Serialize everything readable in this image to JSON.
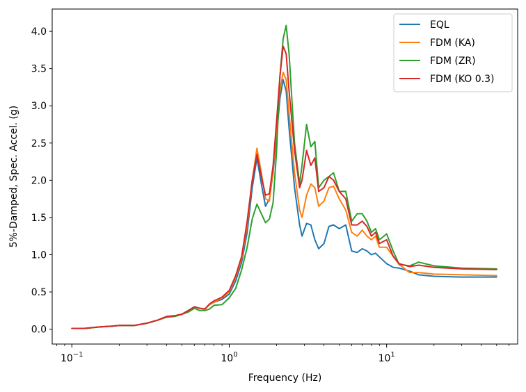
{
  "chart_data": {
    "type": "line",
    "xscale": "log",
    "xlabel": "Frequency (Hz)",
    "ylabel": "5%-Damped, Spec. Accel. (g)",
    "xlim": [
      0.075,
      68
    ],
    "ylim": [
      -0.2,
      4.3
    ],
    "yticks": [
      0.0,
      0.5,
      1.0,
      1.5,
      2.0,
      2.5,
      3.0,
      3.5,
      4.0
    ],
    "ytick_labels": [
      "0.0",
      "0.5",
      "1.0",
      "1.5",
      "2.0",
      "2.5",
      "3.0",
      "3.5",
      "4.0"
    ],
    "xticks": [
      0.1,
      1,
      10
    ],
    "xtick_labels": [
      {
        "base": "10",
        "exp": "−1"
      },
      {
        "base": "10",
        "exp": "0"
      },
      {
        "base": "10",
        "exp": "1"
      }
    ],
    "legend_position": "top-right",
    "grid": false,
    "series": [
      {
        "name": "EQL",
        "color": "#1f77b4",
        "points": [
          [
            0.1,
            0.01
          ],
          [
            0.12,
            0.01
          ],
          [
            0.15,
            0.03
          ],
          [
            0.18,
            0.04
          ],
          [
            0.2,
            0.05
          ],
          [
            0.25,
            0.05
          ],
          [
            0.3,
            0.08
          ],
          [
            0.35,
            0.12
          ],
          [
            0.4,
            0.17
          ],
          [
            0.45,
            0.18
          ],
          [
            0.5,
            0.2
          ],
          [
            0.55,
            0.25
          ],
          [
            0.6,
            0.3
          ],
          [
            0.65,
            0.28
          ],
          [
            0.7,
            0.27
          ],
          [
            0.75,
            0.33
          ],
          [
            0.8,
            0.36
          ],
          [
            0.9,
            0.4
          ],
          [
            1.0,
            0.47
          ],
          [
            1.1,
            0.65
          ],
          [
            1.2,
            0.9
          ],
          [
            1.3,
            1.3
          ],
          [
            1.4,
            1.9
          ],
          [
            1.5,
            2.3
          ],
          [
            1.6,
            1.95
          ],
          [
            1.7,
            1.65
          ],
          [
            1.8,
            1.75
          ],
          [
            1.9,
            2.1
          ],
          [
            2.0,
            2.6
          ],
          [
            2.1,
            3.1
          ],
          [
            2.2,
            3.35
          ],
          [
            2.3,
            3.2
          ],
          [
            2.4,
            2.7
          ],
          [
            2.6,
            1.9
          ],
          [
            2.8,
            1.4
          ],
          [
            2.9,
            1.25
          ],
          [
            3.1,
            1.42
          ],
          [
            3.3,
            1.4
          ],
          [
            3.5,
            1.2
          ],
          [
            3.7,
            1.08
          ],
          [
            4.0,
            1.15
          ],
          [
            4.3,
            1.38
          ],
          [
            4.6,
            1.4
          ],
          [
            5.0,
            1.35
          ],
          [
            5.5,
            1.4
          ],
          [
            6.0,
            1.05
          ],
          [
            6.5,
            1.03
          ],
          [
            7.0,
            1.08
          ],
          [
            7.5,
            1.05
          ],
          [
            8.0,
            1.0
          ],
          [
            8.5,
            1.02
          ],
          [
            9.0,
            0.97
          ],
          [
            10.0,
            0.88
          ],
          [
            11.0,
            0.83
          ],
          [
            12.0,
            0.82
          ],
          [
            14.0,
            0.78
          ],
          [
            16.0,
            0.73
          ],
          [
            20.0,
            0.71
          ],
          [
            30.0,
            0.7
          ],
          [
            50.0,
            0.7
          ]
        ]
      },
      {
        "name": "FDM (KA)",
        "color": "#ff7f0e",
        "points": [
          [
            0.1,
            0.01
          ],
          [
            0.12,
            0.01
          ],
          [
            0.15,
            0.03
          ],
          [
            0.18,
            0.04
          ],
          [
            0.2,
            0.05
          ],
          [
            0.25,
            0.05
          ],
          [
            0.3,
            0.08
          ],
          [
            0.35,
            0.12
          ],
          [
            0.4,
            0.17
          ],
          [
            0.45,
            0.18
          ],
          [
            0.5,
            0.2
          ],
          [
            0.55,
            0.25
          ],
          [
            0.6,
            0.3
          ],
          [
            0.65,
            0.28
          ],
          [
            0.7,
            0.27
          ],
          [
            0.75,
            0.33
          ],
          [
            0.8,
            0.36
          ],
          [
            0.9,
            0.42
          ],
          [
            1.0,
            0.5
          ],
          [
            1.1,
            0.7
          ],
          [
            1.2,
            0.95
          ],
          [
            1.3,
            1.4
          ],
          [
            1.4,
            2.0
          ],
          [
            1.5,
            2.43
          ],
          [
            1.6,
            2.1
          ],
          [
            1.7,
            1.75
          ],
          [
            1.8,
            1.72
          ],
          [
            1.9,
            2.15
          ],
          [
            2.0,
            2.7
          ],
          [
            2.1,
            3.2
          ],
          [
            2.2,
            3.45
          ],
          [
            2.3,
            3.35
          ],
          [
            2.4,
            2.9
          ],
          [
            2.6,
            2.1
          ],
          [
            2.8,
            1.6
          ],
          [
            2.9,
            1.5
          ],
          [
            3.1,
            1.8
          ],
          [
            3.3,
            1.95
          ],
          [
            3.5,
            1.9
          ],
          [
            3.7,
            1.65
          ],
          [
            4.0,
            1.72
          ],
          [
            4.3,
            1.9
          ],
          [
            4.6,
            1.92
          ],
          [
            5.0,
            1.75
          ],
          [
            5.5,
            1.6
          ],
          [
            6.0,
            1.3
          ],
          [
            6.5,
            1.25
          ],
          [
            7.0,
            1.33
          ],
          [
            7.5,
            1.25
          ],
          [
            8.0,
            1.2
          ],
          [
            8.5,
            1.25
          ],
          [
            9.0,
            1.1
          ],
          [
            10.0,
            1.1
          ],
          [
            11.0,
            0.98
          ],
          [
            12.0,
            0.87
          ],
          [
            14.0,
            0.76
          ],
          [
            16.0,
            0.76
          ],
          [
            20.0,
            0.74
          ],
          [
            30.0,
            0.73
          ],
          [
            50.0,
            0.72
          ]
        ]
      },
      {
        "name": "FDM (ZR)",
        "color": "#2ca02c",
        "points": [
          [
            0.1,
            0.01
          ],
          [
            0.12,
            0.01
          ],
          [
            0.15,
            0.03
          ],
          [
            0.18,
            0.04
          ],
          [
            0.2,
            0.05
          ],
          [
            0.25,
            0.05
          ],
          [
            0.3,
            0.08
          ],
          [
            0.35,
            0.12
          ],
          [
            0.4,
            0.16
          ],
          [
            0.45,
            0.17
          ],
          [
            0.5,
            0.2
          ],
          [
            0.55,
            0.23
          ],
          [
            0.6,
            0.28
          ],
          [
            0.65,
            0.25
          ],
          [
            0.7,
            0.25
          ],
          [
            0.75,
            0.27
          ],
          [
            0.8,
            0.32
          ],
          [
            0.9,
            0.33
          ],
          [
            1.0,
            0.42
          ],
          [
            1.1,
            0.55
          ],
          [
            1.2,
            0.8
          ],
          [
            1.3,
            1.1
          ],
          [
            1.4,
            1.48
          ],
          [
            1.5,
            1.68
          ],
          [
            1.6,
            1.55
          ],
          [
            1.7,
            1.43
          ],
          [
            1.8,
            1.48
          ],
          [
            1.9,
            1.7
          ],
          [
            2.0,
            2.4
          ],
          [
            2.1,
            3.4
          ],
          [
            2.2,
            3.9
          ],
          [
            2.3,
            4.08
          ],
          [
            2.4,
            3.7
          ],
          [
            2.6,
            2.5
          ],
          [
            2.8,
            1.95
          ],
          [
            2.9,
            2.2
          ],
          [
            3.1,
            2.75
          ],
          [
            3.3,
            2.45
          ],
          [
            3.5,
            2.52
          ],
          [
            3.7,
            1.9
          ],
          [
            4.0,
            2.0
          ],
          [
            4.3,
            2.05
          ],
          [
            4.6,
            2.1
          ],
          [
            5.0,
            1.85
          ],
          [
            5.5,
            1.85
          ],
          [
            6.0,
            1.45
          ],
          [
            6.5,
            1.55
          ],
          [
            7.0,
            1.55
          ],
          [
            7.5,
            1.45
          ],
          [
            8.0,
            1.3
          ],
          [
            8.5,
            1.35
          ],
          [
            9.0,
            1.2
          ],
          [
            10.0,
            1.28
          ],
          [
            11.0,
            1.05
          ],
          [
            12.0,
            0.87
          ],
          [
            14.0,
            0.85
          ],
          [
            16.0,
            0.9
          ],
          [
            20.0,
            0.85
          ],
          [
            30.0,
            0.82
          ],
          [
            50.0,
            0.81
          ]
        ]
      },
      {
        "name": "FDM (KO 0.3)",
        "color": "#d62728",
        "points": [
          [
            0.1,
            0.01
          ],
          [
            0.12,
            0.01
          ],
          [
            0.15,
            0.03
          ],
          [
            0.18,
            0.04
          ],
          [
            0.2,
            0.05
          ],
          [
            0.25,
            0.05
          ],
          [
            0.3,
            0.08
          ],
          [
            0.35,
            0.12
          ],
          [
            0.4,
            0.17
          ],
          [
            0.45,
            0.18
          ],
          [
            0.5,
            0.2
          ],
          [
            0.55,
            0.25
          ],
          [
            0.6,
            0.3
          ],
          [
            0.65,
            0.28
          ],
          [
            0.7,
            0.27
          ],
          [
            0.75,
            0.34
          ],
          [
            0.8,
            0.38
          ],
          [
            0.9,
            0.43
          ],
          [
            1.0,
            0.52
          ],
          [
            1.1,
            0.72
          ],
          [
            1.2,
            0.98
          ],
          [
            1.3,
            1.45
          ],
          [
            1.4,
            2.0
          ],
          [
            1.5,
            2.35
          ],
          [
            1.6,
            2.05
          ],
          [
            1.7,
            1.8
          ],
          [
            1.8,
            1.82
          ],
          [
            1.9,
            2.2
          ],
          [
            2.0,
            2.8
          ],
          [
            2.1,
            3.4
          ],
          [
            2.2,
            3.8
          ],
          [
            2.3,
            3.7
          ],
          [
            2.4,
            3.2
          ],
          [
            2.6,
            2.4
          ],
          [
            2.8,
            1.9
          ],
          [
            2.9,
            2.0
          ],
          [
            3.1,
            2.4
          ],
          [
            3.3,
            2.2
          ],
          [
            3.5,
            2.3
          ],
          [
            3.7,
            1.85
          ],
          [
            4.0,
            1.9
          ],
          [
            4.3,
            2.05
          ],
          [
            4.6,
            2.0
          ],
          [
            5.0,
            1.85
          ],
          [
            5.5,
            1.75
          ],
          [
            6.0,
            1.4
          ],
          [
            6.5,
            1.4
          ],
          [
            7.0,
            1.45
          ],
          [
            7.5,
            1.38
          ],
          [
            8.0,
            1.25
          ],
          [
            8.5,
            1.3
          ],
          [
            9.0,
            1.15
          ],
          [
            10.0,
            1.2
          ],
          [
            11.0,
            0.98
          ],
          [
            12.0,
            0.88
          ],
          [
            14.0,
            0.84
          ],
          [
            16.0,
            0.86
          ],
          [
            20.0,
            0.83
          ],
          [
            30.0,
            0.81
          ],
          [
            50.0,
            0.8
          ]
        ]
      }
    ]
  }
}
